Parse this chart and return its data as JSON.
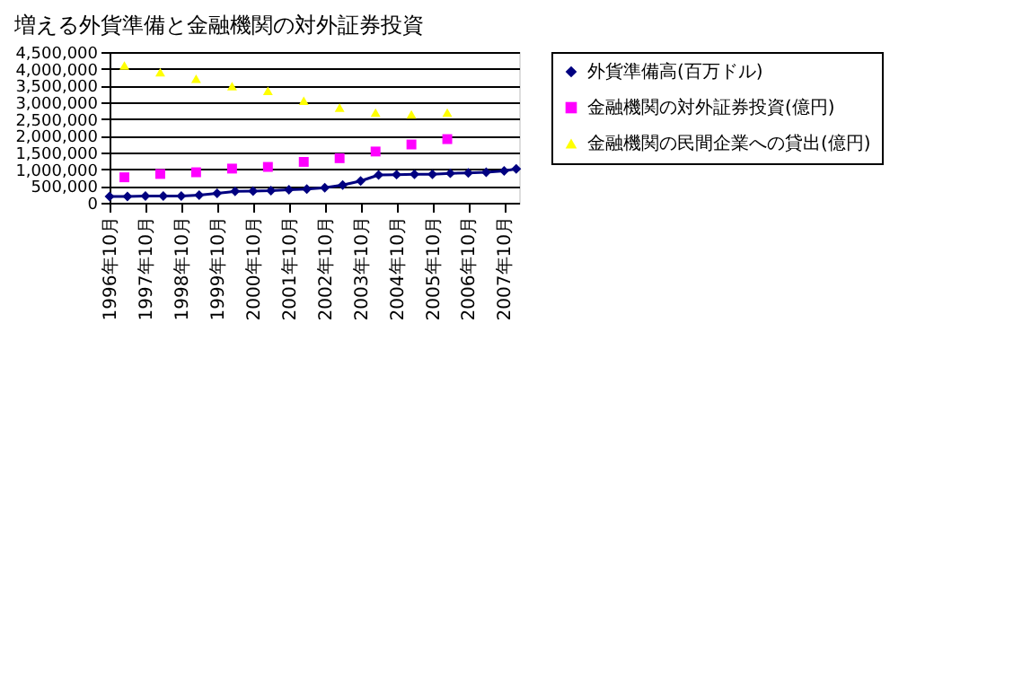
{
  "chart_data": {
    "type": "line",
    "title": "増える外貨準備と金融機関の対外証券投資",
    "xlim": [
      "1996-10",
      "2008-03"
    ],
    "xticks": [
      {
        "value": "1996-10",
        "label": "1996年10月"
      },
      {
        "value": "1997-10",
        "label": "1997年10月"
      },
      {
        "value": "1998-10",
        "label": "1998年10月"
      },
      {
        "value": "1999-10",
        "label": "1999年10月"
      },
      {
        "value": "2000-10",
        "label": "2000年10月"
      },
      {
        "value": "2001-10",
        "label": "2001年10月"
      },
      {
        "value": "2002-10",
        "label": "2002年10月"
      },
      {
        "value": "2003-10",
        "label": "2003年10月"
      },
      {
        "value": "2004-10",
        "label": "2004年10月"
      },
      {
        "value": "2005-10",
        "label": "2005年10月"
      },
      {
        "value": "2006-10",
        "label": "2006年10月"
      },
      {
        "value": "2007-10",
        "label": "2007年10月"
      }
    ],
    "ylim": [
      0,
      4500000
    ],
    "yticks": [
      0,
      {
        "value": 500000,
        "label": "500,000"
      },
      {
        "value": 1000000,
        "label": "1,000,000"
      },
      {
        "value": 1500000,
        "label": "1,500,000"
      },
      {
        "value": 2000000,
        "label": "2,000,000"
      },
      {
        "value": 2500000,
        "label": "2,500,000"
      },
      {
        "value": 3000000,
        "label": "3,000,000"
      },
      {
        "value": 3500000,
        "label": "3,500,000"
      },
      {
        "value": 4000000,
        "label": "4,000,000"
      },
      {
        "value": 4500000,
        "label": "4,500,000"
      }
    ],
    "grid": "y",
    "legend": "right",
    "series": [
      {
        "name": "外貨準備高(百万ドル)",
        "marker": "diamond",
        "color": "#000080",
        "x": [
          "1996-10",
          "1997-04",
          "1997-10",
          "1998-04",
          "1998-10",
          "1999-04",
          "1999-10",
          "2000-04",
          "2000-10",
          "2001-04",
          "2001-10",
          "2002-04",
          "2002-10",
          "2003-04",
          "2003-10",
          "2004-04",
          "2004-10",
          "2005-04",
          "2005-10",
          "2006-04",
          "2006-10",
          "2007-04",
          "2007-10",
          "2008-02"
        ],
        "values": [
          190000,
          190000,
          200000,
          200000,
          200000,
          230000,
          280000,
          340000,
          350000,
          360000,
          390000,
          410000,
          450000,
          530000,
          650000,
          830000,
          840000,
          850000,
          850000,
          880000,
          890000,
          910000,
          950000,
          1010000
        ]
      },
      {
        "name": "金融機関の対外証券投資(億円)",
        "type": "scatter",
        "marker": "square",
        "color": "#ff00ff",
        "x": [
          "1997-03",
          "1998-03",
          "1999-03",
          "2000-03",
          "2001-03",
          "2002-03",
          "2003-03",
          "2004-03",
          "2005-03",
          "2006-03"
        ],
        "values": [
          760000,
          860000,
          910000,
          1020000,
          1070000,
          1220000,
          1330000,
          1530000,
          1740000,
          1900000
        ]
      },
      {
        "name": "金融機関の民間企業への貸出(億円)",
        "type": "scatter",
        "marker": "triangle",
        "color": "#ffff00",
        "x": [
          "1997-03",
          "1998-03",
          "1999-03",
          "2000-03",
          "2001-03",
          "2002-03",
          "2003-03",
          "2004-03",
          "2005-03",
          "2006-03"
        ],
        "values": [
          4100000,
          3900000,
          3700000,
          3480000,
          3340000,
          3050000,
          2840000,
          2690000,
          2640000,
          2690000
        ]
      }
    ]
  }
}
